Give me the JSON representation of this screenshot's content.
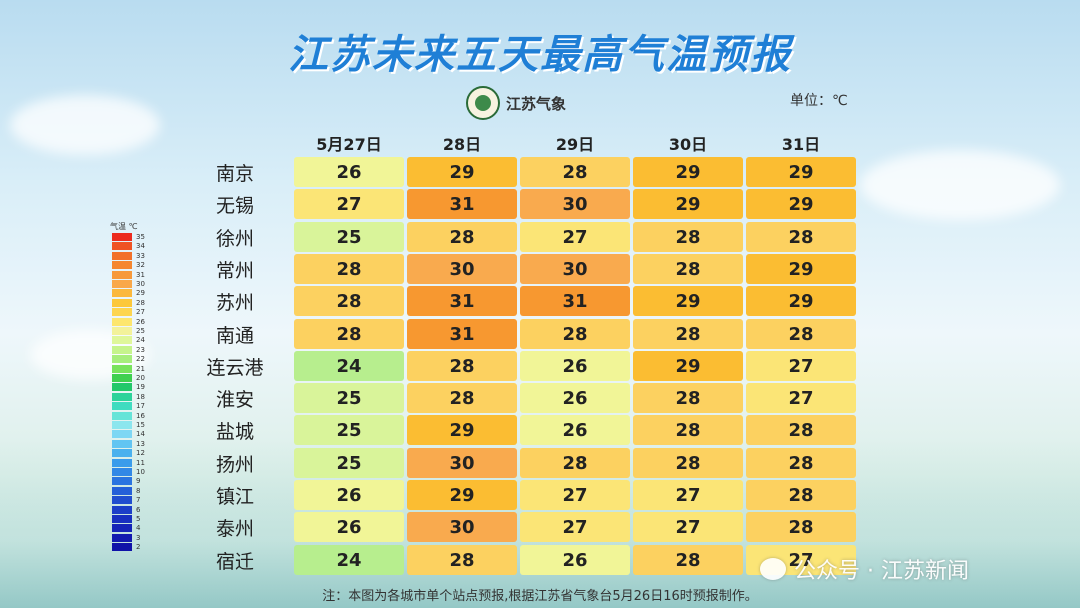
{
  "title": "江苏未来五天最高气温预报",
  "logo_text": "江苏气象",
  "unit": "单位：℃",
  "footer": "注：本图为各城市单个站点预报,根据江苏省气象台5月26日16时预报制作。",
  "watermark": "公众号 · 江苏新闻",
  "legend": {
    "title": "气温 ℃",
    "ticks": [
      35,
      34,
      33,
      32,
      31,
      30,
      29,
      28,
      27,
      26,
      25,
      24,
      23,
      22,
      21,
      20,
      19,
      18,
      17,
      16,
      15,
      14,
      13,
      12,
      11,
      10,
      9,
      8,
      7,
      6,
      5,
      4,
      3,
      2
    ],
    "colors": [
      "#ec2b1f",
      "#ef5324",
      "#f2702a",
      "#f5862f",
      "#f7993b",
      "#f9a84a",
      "#fbb83c",
      "#fcc83a",
      "#fdd54f",
      "#fde66e",
      "#f3f29a",
      "#dff79a",
      "#c6f48c",
      "#a7ee7c",
      "#79e35c",
      "#3fd04f",
      "#22c86a",
      "#2bd39a",
      "#3fdcc0",
      "#66e4d8",
      "#8ce6ee",
      "#7ed7f4",
      "#62c5f2",
      "#4ab1ee",
      "#3a9ceb",
      "#3188e6",
      "#2a74e0",
      "#2460d8",
      "#204ecf",
      "#1c3fc8",
      "#1830c0",
      "#1524b8",
      "#121ab0",
      "#0f12a8"
    ]
  },
  "chart_data": {
    "type": "heatmap",
    "title": "江苏未来五天最高气温预报",
    "unit": "℃",
    "columns": [
      "5月27日",
      "28日",
      "29日",
      "30日",
      "31日"
    ],
    "rows": [
      {
        "city": "南京",
        "values": [
          26,
          29,
          28,
          29,
          29
        ]
      },
      {
        "city": "无锡",
        "values": [
          27,
          31,
          30,
          29,
          29
        ]
      },
      {
        "city": "徐州",
        "values": [
          25,
          28,
          27,
          28,
          28
        ]
      },
      {
        "city": "常州",
        "values": [
          28,
          30,
          30,
          28,
          29
        ]
      },
      {
        "city": "苏州",
        "values": [
          28,
          31,
          31,
          29,
          29
        ]
      },
      {
        "city": "南通",
        "values": [
          28,
          31,
          28,
          28,
          28
        ]
      },
      {
        "city": "连云港",
        "values": [
          24,
          28,
          26,
          29,
          27
        ]
      },
      {
        "city": "淮安",
        "values": [
          25,
          28,
          26,
          28,
          27
        ]
      },
      {
        "city": "盐城",
        "values": [
          25,
          29,
          26,
          28,
          28
        ]
      },
      {
        "city": "扬州",
        "values": [
          25,
          30,
          28,
          28,
          28
        ]
      },
      {
        "city": "镇江",
        "values": [
          26,
          29,
          27,
          27,
          28
        ]
      },
      {
        "city": "泰州",
        "values": [
          26,
          30,
          27,
          27,
          28
        ]
      },
      {
        "city": "宿迁",
        "values": [
          24,
          28,
          26,
          28,
          27
        ]
      }
    ],
    "color_scale": {
      "24": "#b7ee8e",
      "25": "#d9f49a",
      "26": "#f1f597",
      "27": "#fbe576",
      "28": "#fcd160",
      "29": "#fbbd32",
      "30": "#f9aa4e",
      "31": "#f79830"
    }
  }
}
